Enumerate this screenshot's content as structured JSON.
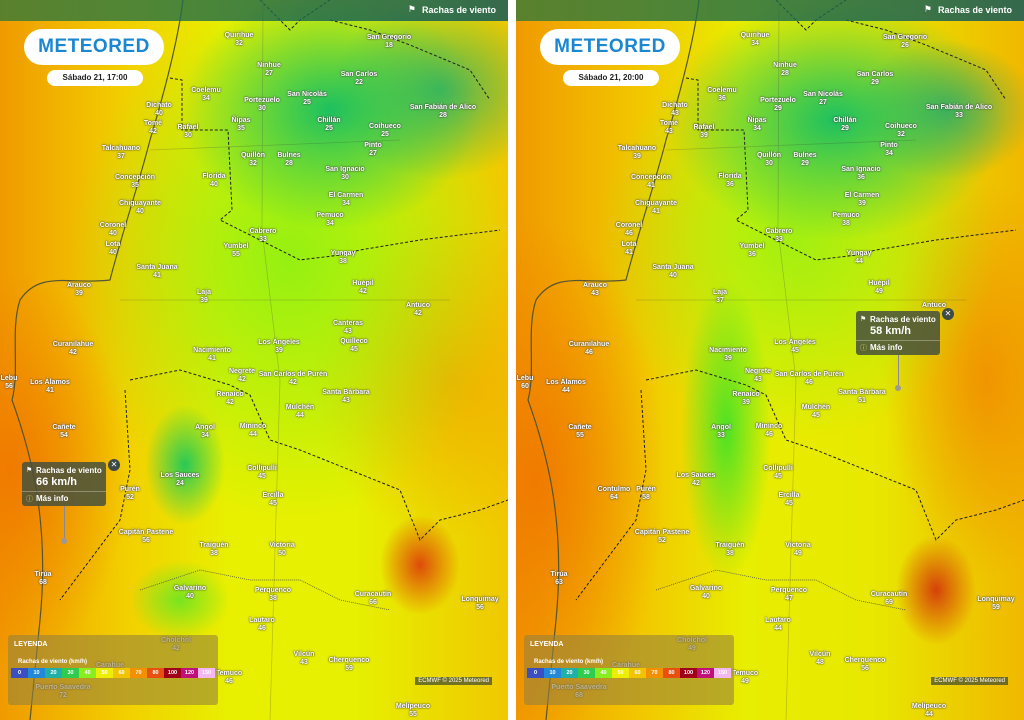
{
  "layer_label": "Rachas de viento",
  "layer_icon": "flag-icon",
  "logo": "METEORED",
  "legend": {
    "title": "LEYENDA",
    "subtitle": "Rachas de viento (km/h)",
    "ticks": [
      "0",
      "10",
      "20",
      "30",
      "40",
      "50",
      "60",
      "70",
      "80",
      "100",
      "120",
      "150"
    ],
    "colors": [
      "#3a4fc0",
      "#2288d8",
      "#20b0a8",
      "#30cc50",
      "#88ee20",
      "#eeee00",
      "#f2c400",
      "#f29000",
      "#e85010",
      "#a00018",
      "#c0107a",
      "#f4b8f0"
    ]
  },
  "credit": "ECMWF © 2025 Meteored",
  "panels": [
    {
      "date": "Sábado 21, 17:00",
      "tooltip": {
        "title": "Rachas de viento",
        "value": "66 km/h",
        "more": "Más info"
      },
      "cities": [
        [
          "Quirihue",
          "32"
        ],
        [
          "San Gregorio",
          "18"
        ],
        [
          "Ninhue",
          "27"
        ],
        [
          "San Carlos",
          "22"
        ],
        [
          "Coelemu",
          "34"
        ],
        [
          "Portezuelo",
          "30"
        ],
        [
          "San Nicolás",
          "25"
        ],
        [
          "Dichato",
          "40"
        ],
        [
          "San Fabián de Alico",
          "28"
        ],
        [
          "Tomé",
          "42"
        ],
        [
          "Rafael",
          "30"
        ],
        [
          "Ñipas",
          "35"
        ],
        [
          "Chillán",
          "25"
        ],
        [
          "Coihueco",
          "25"
        ],
        [
          "Talcahuano",
          "37"
        ],
        [
          "Pinto",
          "27"
        ],
        [
          "Quillón",
          "32"
        ],
        [
          "Bulnes",
          "28"
        ],
        [
          "San Ignacio",
          "30"
        ],
        [
          "Concepción",
          "35"
        ],
        [
          "Florida",
          "40"
        ],
        [
          "El Carmen",
          "34"
        ],
        [
          "Chiguayante",
          "40"
        ],
        [
          "Pemuco",
          "34"
        ],
        [
          "Coronel",
          "40"
        ],
        [
          "Cabrero",
          "33"
        ],
        [
          "Yumbel",
          "55"
        ],
        [
          "Yungay",
          "38"
        ],
        [
          "Lota",
          "40"
        ],
        [
          "Santa Juana",
          "41"
        ],
        [
          "Huépil",
          "42"
        ],
        [
          "Laja",
          "39"
        ],
        [
          "Arauco",
          "39"
        ],
        [
          "Antuco",
          "42"
        ],
        [
          "Curanilahue",
          "42"
        ],
        [
          "Canteras",
          "43"
        ],
        [
          "Quilleco",
          "45"
        ],
        [
          "Los Ángeles",
          "39"
        ],
        [
          "Nacimiento",
          "41"
        ],
        [
          "Negrete",
          "42"
        ],
        [
          "San Carlos de Purén",
          "42"
        ],
        [
          "Lebu",
          "56"
        ],
        [
          "Los Álamos",
          "41"
        ],
        [
          "Santa Bárbara",
          "43"
        ],
        [
          "Renaico",
          "42"
        ],
        [
          "Mulchén",
          "44"
        ],
        [
          "Cañete",
          "54"
        ],
        [
          "Angol",
          "34"
        ],
        [
          "Mininco",
          "44"
        ],
        [
          "Los Sauces",
          "24"
        ],
        [
          "Collipulli",
          "45"
        ],
        [
          "Purén",
          "52"
        ],
        [
          "Ercilla",
          "45"
        ],
        [
          "Capitán Pastene",
          "56"
        ],
        [
          "Traiguén",
          "38"
        ],
        [
          "Victoria",
          "50"
        ],
        [
          "Tirúa",
          "68"
        ],
        [
          "Galvarino",
          "40"
        ],
        [
          "Perquenco",
          "38"
        ],
        [
          "Curacautín",
          "66"
        ],
        [
          "Lonquimay",
          "56"
        ],
        [
          "Lautaro",
          "46"
        ],
        [
          "Cholchol",
          "42"
        ],
        [
          "Vilcún",
          "43"
        ],
        [
          "Cherquenco",
          "59"
        ],
        [
          "Temuco",
          "46"
        ],
        [
          "Carahue",
          ""
        ],
        [
          "Puerto Saavedra",
          "72"
        ],
        [
          "Melipeuco",
          "55"
        ]
      ]
    },
    {
      "date": "Sábado 21, 20:00",
      "tooltip": {
        "title": "Rachas de viento",
        "value": "58 km/h",
        "more": "Más info"
      },
      "cities": [
        [
          "Quirihue",
          "34"
        ],
        [
          "San Gregorio",
          "26"
        ],
        [
          "Ninhue",
          "28"
        ],
        [
          "San Carlos",
          "29"
        ],
        [
          "Coelemu",
          "36"
        ],
        [
          "Portezuelo",
          "29"
        ],
        [
          "San Nicolás",
          "27"
        ],
        [
          "Dichato",
          "43"
        ],
        [
          "San Fabián de Alico",
          "33"
        ],
        [
          "Tomé",
          "43"
        ],
        [
          "Rafael",
          "39"
        ],
        [
          "Ñipas",
          "34"
        ],
        [
          "Chillán",
          "29"
        ],
        [
          "Coihueco",
          "32"
        ],
        [
          "Talcahuano",
          "39"
        ],
        [
          "Pinto",
          "34"
        ],
        [
          "Quillón",
          "30"
        ],
        [
          "Bulnes",
          "29"
        ],
        [
          "San Ignacio",
          "36"
        ],
        [
          "Concepción",
          "41"
        ],
        [
          "Florida",
          "36"
        ],
        [
          "El Carmen",
          "39"
        ],
        [
          "Chiguayante",
          "41"
        ],
        [
          "Pemuco",
          "38"
        ],
        [
          "Coronel",
          "46"
        ],
        [
          "Cabrero",
          "33"
        ],
        [
          "Yumbel",
          "36"
        ],
        [
          "Yungay",
          "44"
        ],
        [
          "Lota",
          "41"
        ],
        [
          "Santa Juana",
          "40"
        ],
        [
          "Huépil",
          "49"
        ],
        [
          "Laja",
          "37"
        ],
        [
          "Arauco",
          "43"
        ],
        [
          "Antuco",
          ""
        ],
        [
          "Curanilahue",
          "46"
        ],
        [
          "Los Ángeles",
          "45"
        ],
        [
          "Nacimiento",
          "39"
        ],
        [
          "Negrete",
          "43"
        ],
        [
          "San Carlos de Purén",
          "46"
        ],
        [
          "Lebu",
          "60"
        ],
        [
          "Los Álamos",
          "44"
        ],
        [
          "Santa Bárbara",
          "51"
        ],
        [
          "Renaico",
          "39"
        ],
        [
          "Mulchén",
          "45"
        ],
        [
          "Cañete",
          "55"
        ],
        [
          "Angol",
          "33"
        ],
        [
          "Mininco",
          "46"
        ],
        [
          "Los Sauces",
          "42"
        ],
        [
          "Collipulli",
          "45"
        ],
        [
          "Contulmo",
          "64"
        ],
        [
          "Purén",
          "58"
        ],
        [
          "Ercilla",
          "45"
        ],
        [
          "Capitán Pastene",
          "52"
        ],
        [
          "Traiguén",
          "38"
        ],
        [
          "Victoria",
          "49"
        ],
        [
          "Tirúa",
          "63"
        ],
        [
          "Galvarino",
          "40"
        ],
        [
          "Perquenco",
          "47"
        ],
        [
          "Curacautín",
          "69"
        ],
        [
          "Lonquimay",
          "59"
        ],
        [
          "Lautaro",
          "44"
        ],
        [
          "Cholchol",
          "49"
        ],
        [
          "Vilcún",
          "48"
        ],
        [
          "Cherquenco",
          "56"
        ],
        [
          "Temuco",
          "49"
        ],
        [
          "Carahue",
          ""
        ],
        [
          "Puerto Saavedra",
          "68"
        ],
        [
          "Melipeuco",
          "44"
        ]
      ]
    }
  ]
}
